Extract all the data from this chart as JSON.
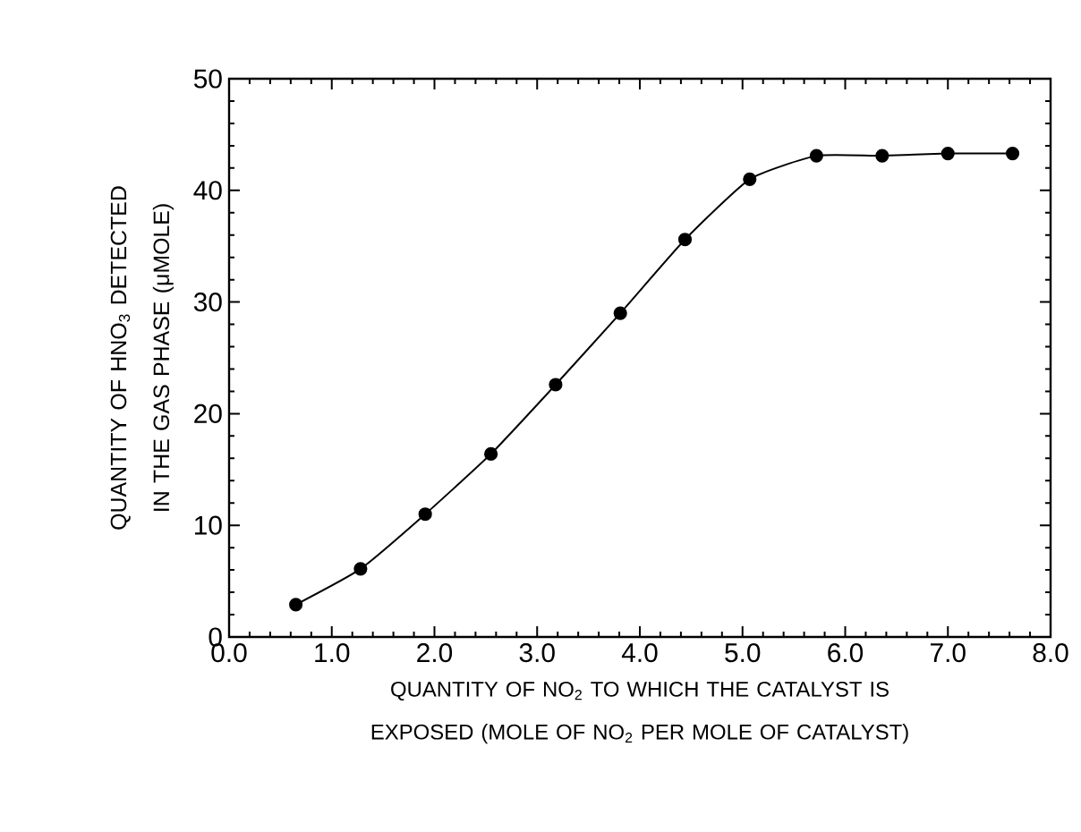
{
  "chart_data": {
    "type": "line",
    "xlabel": "QUANTITY OF NO$_{2}$ TO WHICH THE CATALYST IS EXPOSED (MOLE OF NO$_{2}$ PER MOLE OF CATALYST)",
    "ylabel": "QUANTITY OF HNO$_{3}$ DETECTED IN THE GAS PHASE (μMOLE)",
    "x": [
      0.65,
      1.28,
      1.91,
      2.55,
      3.18,
      3.81,
      4.44,
      5.07,
      5.72,
      6.36,
      7.0,
      7.63
    ],
    "series": [
      {
        "color": "#000000",
        "values": [
          2.9,
          6.1,
          11.0,
          16.4,
          22.6,
          29.0,
          35.6,
          41.0,
          43.1,
          43.1,
          43.3,
          43.3
        ]
      }
    ],
    "marker": "circle",
    "line_style": "solid",
    "xlim": [
      0.0,
      8.0
    ],
    "ylim": [
      0,
      50
    ],
    "xticks": [
      {
        "value": 0,
        "label": "0.0"
      },
      {
        "value": 1,
        "label": "1.0"
      },
      {
        "value": 2,
        "label": "2.0"
      },
      {
        "value": 3,
        "label": "3.0"
      },
      {
        "value": 4,
        "label": "4.0"
      },
      {
        "value": 5,
        "label": "5.0"
      },
      {
        "value": 6,
        "label": "6.0"
      },
      {
        "value": 7,
        "label": "7.0"
      },
      {
        "value": 8,
        "label": "8.0"
      }
    ],
    "yticks": [
      0,
      10,
      20,
      30,
      40,
      50
    ]
  }
}
